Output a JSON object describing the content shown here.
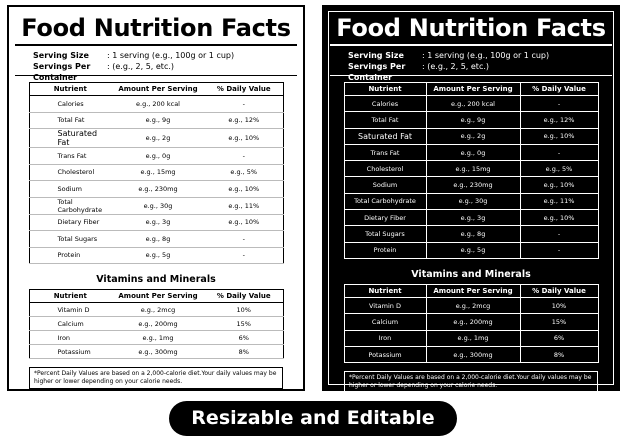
{
  "title": "Food Nutrition Facts",
  "serving_size_label": "Serving Size",
  "serving_size_value": ": 1 serving (e.g., 100g or 1 cup)",
  "servings_per_container_label": "Servings Per Container",
  "servings_per_container_value": ": (e.g., 2, 5, etc.)",
  "headers": {
    "nutrient": "Nutrient",
    "amount": "Amount Per Serving",
    "daily": "% Daily Value"
  },
  "nutrients": [
    {
      "name": "Calories",
      "amount": "e.g., 200 kcal",
      "daily": "-"
    },
    {
      "name": "Total Fat",
      "amount": "e.g., 9g",
      "daily": "e.g., 12%"
    },
    {
      "name": "Saturated Fat",
      "amount": "e.g., 2g",
      "daily": "e.g., 10%"
    },
    {
      "name": "Trans Fat",
      "amount": "e.g., 0g",
      "daily": "-"
    },
    {
      "name": "Cholesterol",
      "amount": "e.g., 15mg",
      "daily": "e.g., 5%"
    },
    {
      "name": "Sodium",
      "amount": "e.g., 230mg",
      "daily": "e.g., 10%"
    },
    {
      "name": "Total Carbohydrate",
      "amount": "e.g., 30g",
      "daily": "e.g., 11%"
    },
    {
      "name": "Dietary Fiber",
      "amount": "e.g., 3g",
      "daily": "e.g., 10%"
    },
    {
      "name": "Total Sugars",
      "amount": "e.g., 8g",
      "daily": "-"
    },
    {
      "name": "Protein",
      "amount": "e.g., 5g",
      "daily": "-"
    }
  ],
  "vitamins_title": "Vitamins and Minerals",
  "vitamins": [
    {
      "name": "Vitamin D",
      "amount": "e.g., 2mcg",
      "daily": "10%"
    },
    {
      "name": "Calcium",
      "amount": "e.g., 200mg",
      "daily": "15%"
    },
    {
      "name": "Iron",
      "amount": "e.g., 1mg",
      "daily": "6%"
    },
    {
      "name": "Potassium",
      "amount": "e.g., 300mg",
      "daily": "8%"
    }
  ],
  "footnote": "*Percent Daily Values are based on a 2,000-calorie diet.Your daily values may be higher or lower depending on your calorie needs.",
  "badge": "Resizable and Editable",
  "colors": {
    "dark_bg": "#000000",
    "light_bg": "#ffffff"
  }
}
